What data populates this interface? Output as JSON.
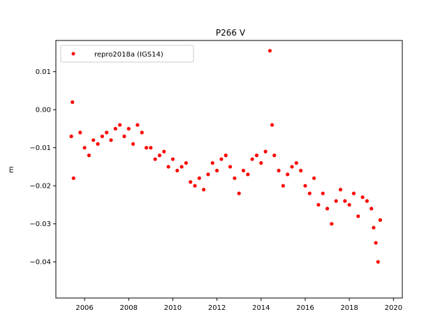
{
  "chart_data": {
    "type": "scatter",
    "title": "P266 V",
    "xlabel": "",
    "ylabel": "m",
    "xlim": [
      2004.7,
      2020.4
    ],
    "ylim": [
      -0.0495,
      0.0182
    ],
    "x_ticks": [
      2006,
      2008,
      2010,
      2012,
      2014,
      2016,
      2018,
      2020
    ],
    "x_tick_labels": [
      "2006",
      "2008",
      "2010",
      "2012",
      "2014",
      "2016",
      "2018",
      "2020"
    ],
    "y_ticks": [
      0.01,
      0.0,
      -0.01,
      -0.02,
      -0.03,
      -0.04
    ],
    "y_tick_labels": [
      "0.01",
      "0.00",
      "−0.01",
      "−0.02",
      "−0.03",
      "−0.04"
    ],
    "grid": false,
    "legend_position": "top-left",
    "series": [
      {
        "name": "repro2018a (IGS14)",
        "color": "#ff0000",
        "marker": "circle",
        "x": [
          2005.4,
          2005.45,
          2005.5,
          2005.8,
          2006.0,
          2006.2,
          2006.4,
          2006.6,
          2006.8,
          2007.0,
          2007.2,
          2007.4,
          2007.6,
          2007.8,
          2008.0,
          2008.2,
          2008.4,
          2008.6,
          2008.8,
          2009.0,
          2009.2,
          2009.4,
          2009.6,
          2009.8,
          2010.0,
          2010.2,
          2010.4,
          2010.6,
          2010.8,
          2011.0,
          2011.2,
          2011.4,
          2011.6,
          2011.8,
          2012.0,
          2012.2,
          2012.4,
          2012.6,
          2012.8,
          2013.0,
          2013.2,
          2013.4,
          2013.6,
          2013.8,
          2014.0,
          2014.2,
          2014.4,
          2014.5,
          2014.6,
          2014.8,
          2015.0,
          2015.2,
          2015.4,
          2015.6,
          2015.8,
          2016.0,
          2016.2,
          2016.4,
          2016.6,
          2016.8,
          2017.0,
          2017.2,
          2017.4,
          2017.6,
          2017.8,
          2018.0,
          2018.2,
          2018.4,
          2018.6,
          2018.8,
          2019.0,
          2019.1,
          2019.2,
          2019.3,
          2019.4
        ],
        "y": [
          -0.007,
          0.002,
          -0.018,
          -0.006,
          -0.01,
          -0.012,
          -0.008,
          -0.009,
          -0.007,
          -0.006,
          -0.008,
          -0.005,
          -0.004,
          -0.007,
          -0.005,
          -0.009,
          -0.004,
          -0.006,
          -0.01,
          -0.01,
          -0.013,
          -0.012,
          -0.011,
          -0.015,
          -0.013,
          -0.016,
          -0.015,
          -0.014,
          -0.019,
          -0.02,
          -0.018,
          -0.021,
          -0.017,
          -0.014,
          -0.016,
          -0.013,
          -0.012,
          -0.015,
          -0.018,
          -0.022,
          -0.016,
          -0.017,
          -0.013,
          -0.012,
          -0.014,
          -0.011,
          0.0155,
          -0.004,
          -0.012,
          -0.016,
          -0.02,
          -0.017,
          -0.015,
          -0.014,
          -0.016,
          -0.02,
          -0.022,
          -0.018,
          -0.025,
          -0.022,
          -0.026,
          -0.03,
          -0.024,
          -0.021,
          -0.024,
          -0.025,
          -0.022,
          -0.028,
          -0.023,
          -0.024,
          -0.026,
          -0.031,
          -0.035,
          -0.04,
          -0.029
        ]
      }
    ]
  }
}
